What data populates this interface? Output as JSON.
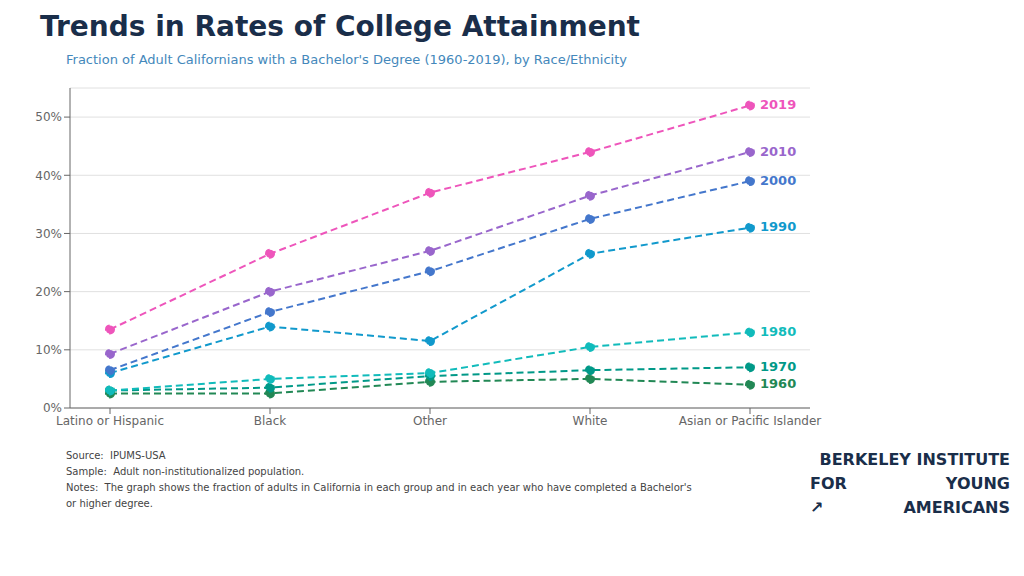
{
  "chart_data": {
    "type": "line",
    "title": "Trends in Rates of College Attainment",
    "subtitle": "Fraction of Adult Californians with a Bachelor's Degree (1960-2019), by Race/Ethnicity",
    "categories": [
      "Latino or Hispanic",
      "Black",
      "Other",
      "White",
      "Asian or Pacific Islander"
    ],
    "series": [
      {
        "name": "2019",
        "color": "#EE55BB",
        "values": [
          0.135,
          0.265,
          0.37,
          0.44,
          0.52
        ]
      },
      {
        "name": "2010",
        "color": "#9966CC",
        "values": [
          0.093,
          0.2,
          0.27,
          0.365,
          0.44
        ]
      },
      {
        "name": "2000",
        "color": "#4477CC",
        "values": [
          0.065,
          0.165,
          0.235,
          0.325,
          0.39
        ]
      },
      {
        "name": "1990",
        "color": "#1199CC",
        "values": [
          0.06,
          0.14,
          0.115,
          0.265,
          0.31
        ]
      },
      {
        "name": "1980",
        "color": "#11BBBB",
        "values": [
          0.03,
          0.05,
          0.06,
          0.105,
          0.13
        ]
      },
      {
        "name": "1970",
        "color": "#009988",
        "values": [
          0.03,
          0.035,
          0.055,
          0.065,
          0.07
        ]
      },
      {
        "name": "1960",
        "color": "#228855",
        "values": [
          0.025,
          0.025,
          0.045,
          0.05,
          0.04
        ]
      }
    ],
    "ylim": [
      0,
      0.55
    ],
    "yticks": [
      {
        "value": 0.0,
        "label": "0%"
      },
      {
        "value": 0.1,
        "label": "10%"
      },
      {
        "value": 0.2,
        "label": "20%"
      },
      {
        "value": 0.3,
        "label": "30%"
      },
      {
        "value": 0.4,
        "label": "40%"
      },
      {
        "value": 0.5,
        "label": "50%"
      }
    ],
    "grid": true,
    "line_style": "dashed",
    "marker": "circle",
    "annotations": [
      "Source:  IPUMS-USA",
      "Sample:  Adult non-institutionalized population.",
      "Notes:  The graph shows the fraction of adults in California in each group and in each year who have completed a Bachelor's",
      "or higher degree.",
      "BERKELEY INSTITUTE",
      "FOR",
      "YOUNG",
      "↗",
      "AMERICANS"
    ]
  }
}
